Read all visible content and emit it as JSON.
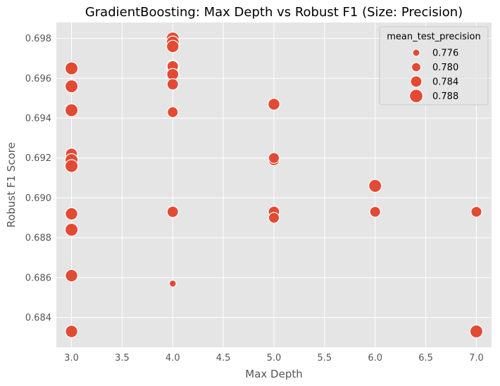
{
  "chart_data": {
    "type": "scatter",
    "title": "GradientBoosting: Max Depth vs Robust F1 (Size: Precision)",
    "xlabel": "Max Depth",
    "ylabel": "Robust F1 Score",
    "xlim": [
      2.85,
      7.15
    ],
    "ylim": [
      0.6825,
      0.6988
    ],
    "xticks": [
      "3.0",
      "3.5",
      "4.0",
      "4.5",
      "5.0",
      "5.5",
      "6.0",
      "6.5",
      "7.0"
    ],
    "xtick_values": [
      3.0,
      3.5,
      4.0,
      4.5,
      5.0,
      5.5,
      6.0,
      6.5,
      7.0
    ],
    "yticks": [
      "0.684",
      "0.686",
      "0.688",
      "0.690",
      "0.692",
      "0.694",
      "0.696",
      "0.698"
    ],
    "ytick_values": [
      0.684,
      0.686,
      0.688,
      0.69,
      0.692,
      0.694,
      0.696,
      0.698
    ],
    "grid": true,
    "legend_position": "top-right",
    "size_variable": "mean_test_precision",
    "size_range": [
      0.7745,
      0.7895
    ],
    "colors": {
      "marker": "#E24A33",
      "marker_edge": "#ffffff",
      "plot_bg": "#E5E5E5",
      "grid": "#ffffff"
    },
    "legend": {
      "title": "mean_test_precision",
      "entries": [
        {
          "label": "0.776",
          "size": 0.776
        },
        {
          "label": "0.780",
          "size": 0.78
        },
        {
          "label": "0.784",
          "size": 0.784
        },
        {
          "label": "0.788",
          "size": 0.788
        }
      ]
    },
    "points": [
      {
        "x": 3.0,
        "y": 0.6965,
        "size": 0.787
      },
      {
        "x": 3.0,
        "y": 0.6956,
        "size": 0.787
      },
      {
        "x": 3.0,
        "y": 0.6944,
        "size": 0.787
      },
      {
        "x": 3.0,
        "y": 0.6922,
        "size": 0.785
      },
      {
        "x": 3.0,
        "y": 0.6919,
        "size": 0.787
      },
      {
        "x": 3.0,
        "y": 0.6916,
        "size": 0.787
      },
      {
        "x": 3.0,
        "y": 0.6892,
        "size": 0.786
      },
      {
        "x": 3.0,
        "y": 0.6884,
        "size": 0.787
      },
      {
        "x": 3.0,
        "y": 0.6861,
        "size": 0.786
      },
      {
        "x": 3.0,
        "y": 0.6833,
        "size": 0.786
      },
      {
        "x": 4.0,
        "y": 0.698,
        "size": 0.787
      },
      {
        "x": 4.0,
        "y": 0.6978,
        "size": 0.787
      },
      {
        "x": 4.0,
        "y": 0.6976,
        "size": 0.786
      },
      {
        "x": 4.0,
        "y": 0.6966,
        "size": 0.787
      },
      {
        "x": 4.0,
        "y": 0.6966,
        "size": 0.784
      },
      {
        "x": 4.0,
        "y": 0.6962,
        "size": 0.785
      },
      {
        "x": 4.0,
        "y": 0.6957,
        "size": 0.784
      },
      {
        "x": 4.0,
        "y": 0.6943,
        "size": 0.783
      },
      {
        "x": 4.0,
        "y": 0.6893,
        "size": 0.784
      },
      {
        "x": 4.0,
        "y": 0.6857,
        "size": 0.7755
      },
      {
        "x": 5.0,
        "y": 0.6947,
        "size": 0.785
      },
      {
        "x": 5.0,
        "y": 0.6919,
        "size": 0.784
      },
      {
        "x": 5.0,
        "y": 0.692,
        "size": 0.783
      },
      {
        "x": 5.0,
        "y": 0.6893,
        "size": 0.784
      },
      {
        "x": 5.0,
        "y": 0.689,
        "size": 0.783
      },
      {
        "x": 6.0,
        "y": 0.6906,
        "size": 0.787
      },
      {
        "x": 6.0,
        "y": 0.6893,
        "size": 0.783
      },
      {
        "x": 7.0,
        "y": 0.6893,
        "size": 0.783
      },
      {
        "x": 7.0,
        "y": 0.6833,
        "size": 0.787
      }
    ]
  }
}
